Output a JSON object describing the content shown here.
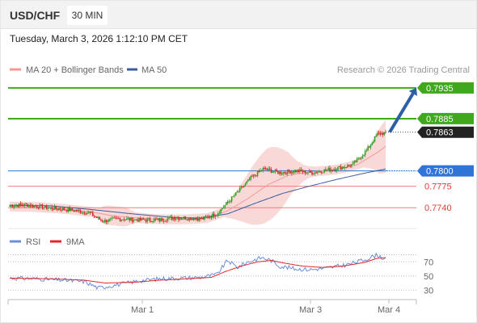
{
  "header": {
    "symbol": "USD/CHF",
    "timeframe": "30 MIN",
    "datetime": "Tuesday, March 3, 2026 1:12:10 PM CET"
  },
  "legend": {
    "ma20": "MA 20 + Bollinger Bands",
    "ma50": "MA 50",
    "credit": "Research © 2026 Trading Central",
    "rsi": "RSI",
    "rsi_ma": "9MA"
  },
  "colors": {
    "up": "#37a02a",
    "down": "#d8292e",
    "ma20": "#f39a97",
    "bollinger_fill": "#f8d9d8",
    "ma50": "#3a5b9c",
    "target": "#3fa81d",
    "pivot": "#2f74d6",
    "support": "#f27c78",
    "current": "#222222",
    "arrow": "#2d5fa6",
    "rsi": "#6b8fd9",
    "rsi_ma": "#e3262a"
  },
  "chart_data": [
    {
      "type": "candlestick",
      "instrument": "USD/CHF",
      "interval": "30 MIN",
      "ylim": [
        0.771,
        0.7952
      ],
      "x_ticks": [
        "Mar 1",
        "Mar 3",
        "Mar 4"
      ],
      "levels": [
        {
          "label": "0.7935",
          "value": 0.7935,
          "kind": "target"
        },
        {
          "label": "0.7885",
          "value": 0.7885,
          "kind": "target"
        },
        {
          "label": "0.7863",
          "value": 0.7863,
          "kind": "current"
        },
        {
          "label": "0.7800",
          "value": 0.78,
          "kind": "pivot"
        },
        {
          "label": "0.7775",
          "value": 0.7775,
          "kind": "support"
        },
        {
          "label": "0.7740",
          "value": 0.774,
          "kind": "support"
        }
      ],
      "forecast_arrow": {
        "from": 0.7863,
        "to": 0.7935
      },
      "price_anchors": [
        [
          0,
          0.7743
        ],
        [
          12,
          0.7745
        ],
        [
          28,
          0.774
        ],
        [
          45,
          0.7736
        ],
        [
          58,
          0.7732
        ],
        [
          68,
          0.7718
        ],
        [
          80,
          0.7722
        ],
        [
          95,
          0.772
        ],
        [
          110,
          0.772
        ],
        [
          120,
          0.7724
        ],
        [
          132,
          0.7723
        ],
        [
          142,
          0.7722
        ],
        [
          152,
          0.773
        ],
        [
          165,
          0.776
        ],
        [
          178,
          0.779
        ],
        [
          186,
          0.7803
        ],
        [
          198,
          0.7797
        ],
        [
          210,
          0.78
        ],
        [
          222,
          0.7797
        ],
        [
          232,
          0.7801
        ],
        [
          242,
          0.7805
        ],
        [
          252,
          0.781
        ],
        [
          262,
          0.7833
        ],
        [
          270,
          0.786
        ],
        [
          276,
          0.7862
        ]
      ],
      "ma20_anchors": [
        [
          0,
          0.7742
        ],
        [
          20,
          0.7741
        ],
        [
          40,
          0.7738
        ],
        [
          60,
          0.7733
        ],
        [
          75,
          0.7727
        ],
        [
          90,
          0.7724
        ],
        [
          110,
          0.7721
        ],
        [
          130,
          0.7721
        ],
        [
          145,
          0.7723
        ],
        [
          160,
          0.7735
        ],
        [
          175,
          0.7755
        ],
        [
          190,
          0.7778
        ],
        [
          205,
          0.7793
        ],
        [
          220,
          0.7798
        ],
        [
          240,
          0.7802
        ],
        [
          255,
          0.781
        ],
        [
          270,
          0.783
        ],
        [
          276,
          0.784
        ]
      ],
      "ma50_anchors": [
        [
          0,
          0.7744
        ],
        [
          30,
          0.7743
        ],
        [
          60,
          0.7737
        ],
        [
          90,
          0.773
        ],
        [
          120,
          0.7724
        ],
        [
          140,
          0.7723
        ],
        [
          160,
          0.773
        ],
        [
          180,
          0.7747
        ],
        [
          200,
          0.7763
        ],
        [
          220,
          0.7775
        ],
        [
          240,
          0.7786
        ],
        [
          260,
          0.7796
        ],
        [
          276,
          0.7803
        ]
      ]
    },
    {
      "type": "line",
      "name": "RSI",
      "y_ticks": [
        70,
        50,
        30
      ],
      "ylim": [
        20,
        84
      ],
      "series": [
        {
          "name": "RSI",
          "anchors": [
            [
              0,
              47
            ],
            [
              20,
              46
            ],
            [
              40,
              44
            ],
            [
              55,
              42
            ],
            [
              65,
              33
            ],
            [
              80,
              38
            ],
            [
              95,
              43
            ],
            [
              110,
              46
            ],
            [
              125,
              47
            ],
            [
              140,
              48
            ],
            [
              152,
              52
            ],
            [
              160,
              72
            ],
            [
              167,
              62
            ],
            [
              175,
              70
            ],
            [
              185,
              76
            ],
            [
              192,
              72
            ],
            [
              198,
              64
            ],
            [
              210,
              60
            ],
            [
              222,
              59
            ],
            [
              235,
              62
            ],
            [
              248,
              66
            ],
            [
              262,
              74
            ],
            [
              270,
              80
            ],
            [
              276,
              73
            ]
          ]
        },
        {
          "name": "9MA",
          "anchors": [
            [
              0,
              47
            ],
            [
              30,
              46
            ],
            [
              55,
              44
            ],
            [
              70,
              40
            ],
            [
              90,
              41
            ],
            [
              110,
              44
            ],
            [
              130,
              46
            ],
            [
              148,
              48
            ],
            [
              158,
              56
            ],
            [
              170,
              64
            ],
            [
              182,
              70
            ],
            [
              192,
              72
            ],
            [
              202,
              68
            ],
            [
              215,
              64
            ],
            [
              230,
              62
            ],
            [
              245,
              64
            ],
            [
              260,
              69
            ],
            [
              270,
              75
            ],
            [
              276,
              76
            ]
          ]
        }
      ]
    }
  ]
}
